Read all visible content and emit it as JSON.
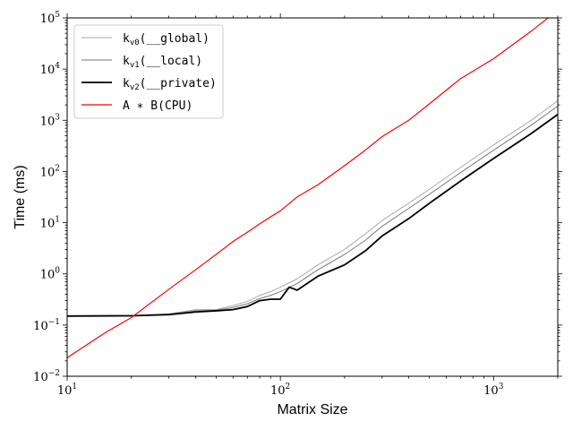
{
  "chart_data": {
    "type": "line",
    "xlabel": "Matrix Size",
    "ylabel": "Time (ms)",
    "x_scale": "log",
    "y_scale": "log",
    "xlim": [
      10,
      2000
    ],
    "ylim": [
      0.01,
      100000
    ],
    "x_ticks": [
      {
        "value": 10,
        "base": "10",
        "exp": "1"
      },
      {
        "value": 100,
        "base": "10",
        "exp": "2"
      },
      {
        "value": 1000,
        "base": "10",
        "exp": "3"
      }
    ],
    "y_ticks": [
      {
        "value": 0.01,
        "base": "10",
        "exp": "−2"
      },
      {
        "value": 0.1,
        "base": "10",
        "exp": "−1"
      },
      {
        "value": 1,
        "base": "10",
        "exp": "0"
      },
      {
        "value": 10,
        "base": "10",
        "exp": "1"
      },
      {
        "value": 100,
        "base": "10",
        "exp": "2"
      },
      {
        "value": 1000,
        "base": "10",
        "exp": "3"
      },
      {
        "value": 10000,
        "base": "10",
        "exp": "4"
      },
      {
        "value": 100000,
        "base": "10",
        "exp": "5"
      }
    ],
    "grid": false,
    "legend_position": "top-left",
    "series": [
      {
        "name": "kv0(__global)",
        "color": "#a9a9a9",
        "width": 1,
        "x": [
          10,
          20,
          30,
          40,
          50,
          60,
          70,
          80,
          90,
          100,
          120,
          150,
          200,
          250,
          300,
          400,
          500,
          700,
          1000,
          1500,
          2000
        ],
        "y": [
          0.15,
          0.152,
          0.165,
          0.2,
          0.2,
          0.24,
          0.29,
          0.38,
          0.45,
          0.55,
          0.8,
          1.5,
          3.0,
          6.0,
          11,
          24,
          45,
          120,
          330,
          1000,
          2400
        ]
      },
      {
        "name": "kv1(__local)",
        "color": "#7a7a7a",
        "width": 1,
        "x": [
          10,
          20,
          30,
          40,
          50,
          60,
          70,
          80,
          90,
          100,
          120,
          150,
          200,
          250,
          300,
          400,
          500,
          700,
          1000,
          1500,
          2000
        ],
        "y": [
          0.15,
          0.152,
          0.162,
          0.19,
          0.195,
          0.22,
          0.26,
          0.33,
          0.38,
          0.45,
          0.65,
          1.2,
          2.4,
          4.5,
          8.5,
          19,
          36,
          95,
          260,
          800,
          1900
        ]
      },
      {
        "name": "kv2(__private)",
        "color": "#000000",
        "width": 1.8,
        "x": [
          10,
          20,
          30,
          40,
          50,
          60,
          70,
          80,
          90,
          100,
          110,
          120,
          150,
          200,
          250,
          300,
          400,
          500,
          700,
          1000,
          1500,
          2000
        ],
        "y": [
          0.15,
          0.152,
          0.16,
          0.18,
          0.19,
          0.2,
          0.23,
          0.3,
          0.32,
          0.32,
          0.55,
          0.48,
          0.9,
          1.5,
          2.8,
          5.5,
          12,
          24,
          65,
          180,
          550,
          1300
        ]
      },
      {
        "name": "A*B(CPU)",
        "color": "#ff0000",
        "width": 1.2,
        "x": [
          10,
          15,
          20,
          30,
          40,
          50,
          60,
          70,
          80,
          90,
          100,
          120,
          150,
          200,
          250,
          300,
          400,
          500,
          700,
          1000,
          1500,
          1800
        ],
        "y": [
          0.023,
          0.07,
          0.14,
          0.5,
          1.2,
          2.4,
          4.3,
          6.5,
          9.5,
          13,
          17,
          32,
          55,
          130,
          260,
          480,
          1000,
          2100,
          6500,
          16000,
          55000,
          100000
        ]
      }
    ],
    "legend_labels": [
      {
        "main": "k",
        "sub": "v0",
        "rest": "(__global)"
      },
      {
        "main": "k",
        "sub": "v1",
        "rest": "(__local)"
      },
      {
        "main": "k",
        "sub": "v2",
        "rest": "(__private)"
      },
      {
        "main": "A ∗ B(CPU)",
        "sub": "",
        "rest": ""
      }
    ]
  }
}
